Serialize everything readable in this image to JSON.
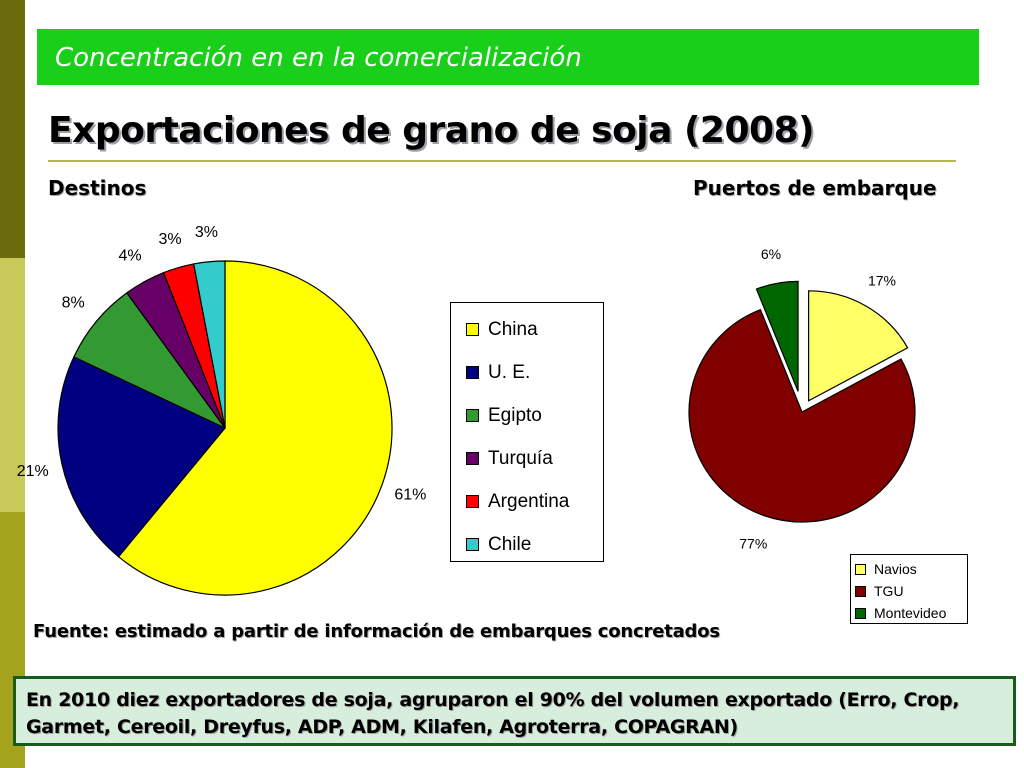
{
  "header": {
    "banner_title": "Concentración en en la comercialización",
    "title": "Exportaciones de grano de soja (2008)"
  },
  "colors": {
    "banner": "#19cf19",
    "accent_bar_dark": "#6b6b0d",
    "accent_bar_light": "#c9c95a",
    "note_background": "#d8eedd",
    "note_border": "#1a5a1a"
  },
  "chart_data": [
    {
      "type": "pie",
      "title": "Destinos",
      "categories": [
        "China",
        "U. E.",
        "Egipto",
        "Turquía",
        "Argentina",
        "Chile"
      ],
      "values": [
        61,
        21,
        8,
        4,
        3,
        3
      ],
      "labels": [
        "61%",
        "21%",
        "8%",
        "4%",
        "3%",
        "3%"
      ],
      "colors": [
        "#ffff00",
        "#000080",
        "#339933",
        "#660066",
        "#ff0000",
        "#33cccc"
      ],
      "legend": "right"
    },
    {
      "type": "pie",
      "title": "Puertos de embarque",
      "categories": [
        "Navios",
        "TGU",
        "Montevideo"
      ],
      "values": [
        17,
        77,
        6
      ],
      "labels": [
        "17%",
        "77%",
        "6%"
      ],
      "colors": [
        "#ffff66",
        "#800000",
        "#006600"
      ],
      "exploded": true,
      "legend": "bottom-right"
    }
  ],
  "source": "Fuente: estimado a partir de información de embarques concretados",
  "note": "En 2010 diez exportadores de soja, agruparon el 90% del volumen exportado (Erro, Crop, Garmet, Cereoil, Dreyfus, ADP, ADM, Kilafen, Agroterra, COPAGRAN)"
}
